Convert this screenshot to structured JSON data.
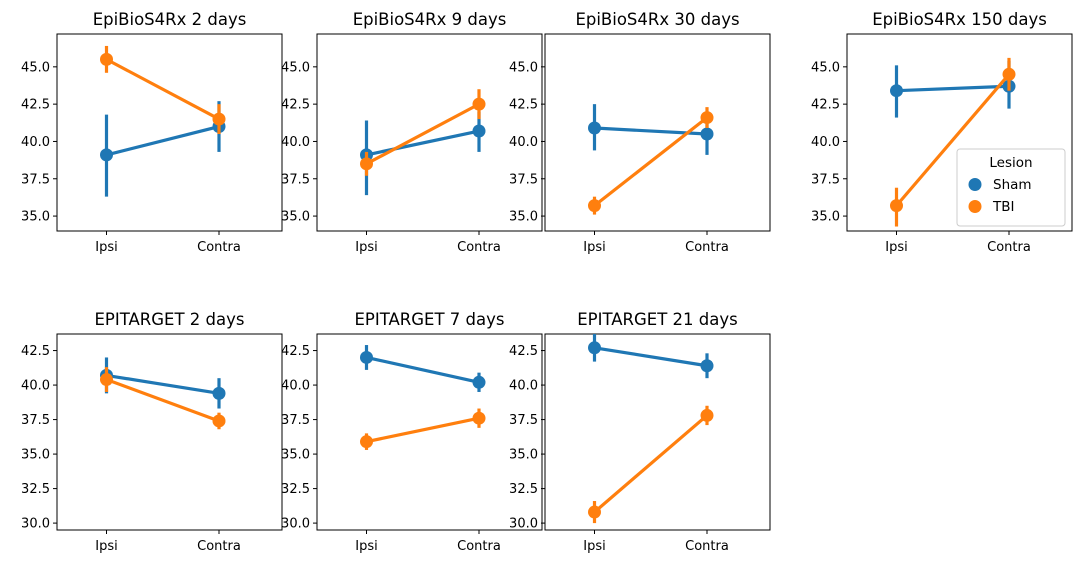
{
  "colors": {
    "series1": "#1f77b4",
    "series2": "#ff7f0e",
    "axis": "#000000",
    "background": "#ffffff"
  },
  "legend": {
    "title": "Lesion",
    "entries": [
      "Sham",
      "TBI"
    ],
    "location": "center-right of the top-right panel"
  },
  "chart_data": [
    {
      "type": "line",
      "title": "EpiBioS4Rx 2 days",
      "categories": [
        "Ipsi",
        "Contra"
      ],
      "ylim": [
        34,
        47.2
      ],
      "yticks": [
        "35.0",
        "37.5",
        "40.0",
        "42.5",
        "45.0"
      ],
      "series": [
        {
          "name": "Sham",
          "values": [
            39.1,
            41.0
          ],
          "ci_low": [
            36.3,
            39.3
          ],
          "ci_high": [
            41.8,
            42.7
          ]
        },
        {
          "name": "TBI",
          "values": [
            45.5,
            41.5
          ],
          "ci_low": [
            44.6,
            40.5
          ],
          "ci_high": [
            46.4,
            42.5
          ]
        }
      ]
    },
    {
      "type": "line",
      "title": "EpiBioS4Rx 9 days",
      "categories": [
        "Ipsi",
        "Contra"
      ],
      "ylim": [
        34,
        47.2
      ],
      "yticks": [
        "35.0",
        "37.5",
        "40.0",
        "42.5",
        "45.0"
      ],
      "series": [
        {
          "name": "Sham",
          "values": [
            39.1,
            40.7
          ],
          "ci_low": [
            36.4,
            39.3
          ],
          "ci_high": [
            41.4,
            42.0
          ]
        },
        {
          "name": "TBI",
          "values": [
            38.5,
            42.5
          ],
          "ci_low": [
            37.7,
            41.5
          ],
          "ci_high": [
            39.3,
            43.5
          ]
        }
      ]
    },
    {
      "type": "line",
      "title": "EpiBioS4Rx 30 days",
      "categories": [
        "Ipsi",
        "Contra"
      ],
      "ylim": [
        34,
        47.2
      ],
      "yticks": [
        "35.0",
        "37.5",
        "40.0",
        "42.5",
        "45.0"
      ],
      "series": [
        {
          "name": "Sham",
          "values": [
            40.9,
            40.5
          ],
          "ci_low": [
            39.4,
            39.1
          ],
          "ci_high": [
            42.5,
            42.0
          ]
        },
        {
          "name": "TBI",
          "values": [
            35.7,
            41.6
          ],
          "ci_low": [
            35.1,
            40.9
          ],
          "ci_high": [
            36.3,
            42.3
          ]
        }
      ]
    },
    {
      "type": "line",
      "title": "EpiBioS4Rx 150 days",
      "categories": [
        "Ipsi",
        "Contra"
      ],
      "ylim": [
        34,
        47.2
      ],
      "yticks": [
        "35.0",
        "37.5",
        "40.0",
        "42.5",
        "45.0"
      ],
      "series": [
        {
          "name": "Sham",
          "values": [
            43.4,
            43.7
          ],
          "ci_low": [
            41.6,
            42.2
          ],
          "ci_high": [
            45.1,
            45.4
          ]
        },
        {
          "name": "TBI",
          "values": [
            35.7,
            44.5
          ],
          "ci_low": [
            34.3,
            43.4
          ],
          "ci_high": [
            36.9,
            45.6
          ]
        }
      ]
    },
    {
      "type": "line",
      "title": "EPITARGET 2 days",
      "categories": [
        "Ipsi",
        "Contra"
      ],
      "ylim": [
        29.5,
        43.7
      ],
      "yticks": [
        "30.0",
        "32.5",
        "35.0",
        "37.5",
        "40.0",
        "42.5"
      ],
      "series": [
        {
          "name": "Sham",
          "values": [
            40.7,
            39.4
          ],
          "ci_low": [
            39.4,
            38.3
          ],
          "ci_high": [
            42.0,
            40.5
          ]
        },
        {
          "name": "TBI",
          "values": [
            40.4,
            37.4
          ],
          "ci_low": [
            39.5,
            36.8
          ],
          "ci_high": [
            41.3,
            38.0
          ]
        }
      ]
    },
    {
      "type": "line",
      "title": "EPITARGET 7 days",
      "categories": [
        "Ipsi",
        "Contra"
      ],
      "ylim": [
        29.5,
        43.7
      ],
      "yticks": [
        "30.0",
        "32.5",
        "35.0",
        "37.5",
        "40.0",
        "42.5"
      ],
      "series": [
        {
          "name": "Sham",
          "values": [
            42.0,
            40.2
          ],
          "ci_low": [
            41.1,
            39.5
          ],
          "ci_high": [
            42.9,
            40.9
          ]
        },
        {
          "name": "TBI",
          "values": [
            35.9,
            37.6
          ],
          "ci_low": [
            35.3,
            36.9
          ],
          "ci_high": [
            36.5,
            38.3
          ]
        }
      ]
    },
    {
      "type": "line",
      "title": "EPITARGET 21 days",
      "categories": [
        "Ipsi",
        "Contra"
      ],
      "ylim": [
        29.5,
        43.7
      ],
      "yticks": [
        "30.0",
        "32.5",
        "35.0",
        "37.5",
        "40.0",
        "42.5"
      ],
      "series": [
        {
          "name": "Sham",
          "values": [
            42.7,
            41.4
          ],
          "ci_low": [
            41.7,
            40.5
          ],
          "ci_high": [
            43.7,
            42.3
          ]
        },
        {
          "name": "TBI",
          "values": [
            30.8,
            37.8
          ],
          "ci_low": [
            30.0,
            37.1
          ],
          "ci_high": [
            31.6,
            38.5
          ]
        }
      ]
    }
  ]
}
